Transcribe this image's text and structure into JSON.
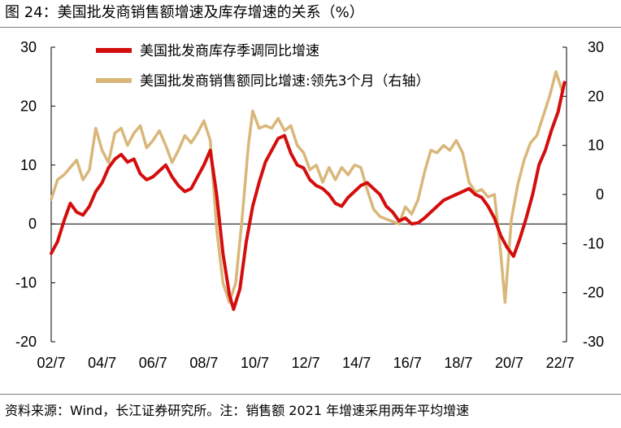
{
  "figure": {
    "title": "图 24：美国批发商销售额增速及库存增速的关系（%）",
    "source": "资料来源：Wind，长江证券研究所。注：销售额 2021 年增速采用两年平均增速"
  },
  "colors": {
    "inventory": "#d40d0d",
    "sales": "#d9b77a",
    "axis": "#000000"
  },
  "chart_data": {
    "type": "line",
    "title": "美国批发商销售额增速及库存增速的关系（%）",
    "x_ticks": [
      "02/7",
      "04/7",
      "06/7",
      "08/7",
      "10/7",
      "12/7",
      "14/7",
      "16/7",
      "18/7",
      "20/7",
      "22/7"
    ],
    "xlim": [
      "2002-07",
      "2022-10"
    ],
    "y_left": {
      "ticks": [
        30,
        20,
        10,
        0,
        -10,
        -20
      ],
      "ylim": [
        -20,
        30
      ]
    },
    "y_right": {
      "ticks": [
        30,
        20,
        10,
        0,
        -10,
        -20,
        -30
      ],
      "ylim": [
        -30,
        30
      ]
    },
    "grid": false,
    "legend_position": "top-center",
    "series": [
      {
        "name": "美国批发商库存季调同比增速",
        "axis": "left",
        "color": "#d40d0d",
        "points": [
          [
            "2002-07",
            -5.0
          ],
          [
            "2002-10",
            -3.0
          ],
          [
            "2003-01",
            0.5
          ],
          [
            "2003-04",
            3.5
          ],
          [
            "2003-07",
            2.0
          ],
          [
            "2003-10",
            1.5
          ],
          [
            "2004-01",
            3.0
          ],
          [
            "2004-04",
            5.5
          ],
          [
            "2004-07",
            7.0
          ],
          [
            "2004-10",
            9.5
          ],
          [
            "2005-01",
            11.0
          ],
          [
            "2005-04",
            11.8
          ],
          [
            "2005-07",
            10.5
          ],
          [
            "2005-10",
            11.0
          ],
          [
            "2006-01",
            8.5
          ],
          [
            "2006-04",
            7.5
          ],
          [
            "2006-07",
            8.0
          ],
          [
            "2006-10",
            9.0
          ],
          [
            "2007-01",
            10.0
          ],
          [
            "2007-04",
            8.0
          ],
          [
            "2007-07",
            6.5
          ],
          [
            "2007-10",
            5.5
          ],
          [
            "2008-01",
            6.0
          ],
          [
            "2008-04",
            8.0
          ],
          [
            "2008-07",
            10.0
          ],
          [
            "2008-10",
            12.5
          ],
          [
            "2009-01",
            5.0
          ],
          [
            "2009-04",
            -5.0
          ],
          [
            "2009-07",
            -12.0
          ],
          [
            "2009-09",
            -14.5
          ],
          [
            "2009-12",
            -11.0
          ],
          [
            "2010-03",
            -3.0
          ],
          [
            "2010-06",
            3.0
          ],
          [
            "2010-09",
            7.0
          ],
          [
            "2010-12",
            10.5
          ],
          [
            "2011-03",
            12.5
          ],
          [
            "2011-06",
            14.5
          ],
          [
            "2011-09",
            15.0
          ],
          [
            "2011-12",
            12.0
          ],
          [
            "2012-03",
            10.0
          ],
          [
            "2012-06",
            9.5
          ],
          [
            "2012-09",
            7.5
          ],
          [
            "2012-12",
            6.5
          ],
          [
            "2013-03",
            6.0
          ],
          [
            "2013-06",
            5.0
          ],
          [
            "2013-09",
            3.5
          ],
          [
            "2013-12",
            3.0
          ],
          [
            "2014-03",
            4.5
          ],
          [
            "2014-06",
            5.5
          ],
          [
            "2014-09",
            6.5
          ],
          [
            "2014-12",
            7.0
          ],
          [
            "2015-03",
            6.0
          ],
          [
            "2015-06",
            5.0
          ],
          [
            "2015-09",
            3.0
          ],
          [
            "2015-12",
            2.0
          ],
          [
            "2016-03",
            0.5
          ],
          [
            "2016-06",
            1.0
          ],
          [
            "2016-09",
            0.0
          ],
          [
            "2016-12",
            0.2
          ],
          [
            "2017-03",
            1.0
          ],
          [
            "2017-06",
            2.0
          ],
          [
            "2017-09",
            3.0
          ],
          [
            "2017-12",
            4.0
          ],
          [
            "2018-03",
            4.5
          ],
          [
            "2018-06",
            5.0
          ],
          [
            "2018-09",
            5.5
          ],
          [
            "2018-12",
            6.0
          ],
          [
            "2019-03",
            5.0
          ],
          [
            "2019-06",
            4.5
          ],
          [
            "2019-09",
            3.0
          ],
          [
            "2019-12",
            1.0
          ],
          [
            "2020-03",
            -2.0
          ],
          [
            "2020-06",
            -4.0
          ],
          [
            "2020-09",
            -5.5
          ],
          [
            "2020-12",
            -2.5
          ],
          [
            "2021-03",
            1.0
          ],
          [
            "2021-06",
            5.0
          ],
          [
            "2021-09",
            10.0
          ],
          [
            "2021-12",
            12.5
          ],
          [
            "2022-03",
            16.0
          ],
          [
            "2022-06",
            19.0
          ],
          [
            "2022-09",
            24.0
          ]
        ]
      },
      {
        "name": "美国批发商销售额同比增速:领先3个月（右轴）",
        "axis": "right",
        "color": "#d9b77a",
        "points": [
          [
            "2002-07",
            -1.0
          ],
          [
            "2002-10",
            3.0
          ],
          [
            "2003-01",
            4.0
          ],
          [
            "2003-04",
            5.5
          ],
          [
            "2003-07",
            7.0
          ],
          [
            "2003-10",
            3.0
          ],
          [
            "2004-01",
            5.0
          ],
          [
            "2004-04",
            13.5
          ],
          [
            "2004-07",
            9.0
          ],
          [
            "2004-10",
            6.5
          ],
          [
            "2005-01",
            12.5
          ],
          [
            "2005-04",
            13.5
          ],
          [
            "2005-07",
            10.0
          ],
          [
            "2005-10",
            12.5
          ],
          [
            "2006-01",
            14.0
          ],
          [
            "2006-04",
            9.5
          ],
          [
            "2006-07",
            11.0
          ],
          [
            "2006-10",
            13.0
          ],
          [
            "2007-01",
            10.0
          ],
          [
            "2007-04",
            6.5
          ],
          [
            "2007-07",
            9.0
          ],
          [
            "2007-10",
            12.0
          ],
          [
            "2008-01",
            10.5
          ],
          [
            "2008-04",
            12.5
          ],
          [
            "2008-07",
            15.0
          ],
          [
            "2008-10",
            11.0
          ],
          [
            "2009-01",
            -7.0
          ],
          [
            "2009-04",
            -18.0
          ],
          [
            "2009-07",
            -22.0
          ],
          [
            "2009-10",
            -18.0
          ],
          [
            "2010-01",
            -5.0
          ],
          [
            "2010-04",
            10.0
          ],
          [
            "2010-06",
            17.0
          ],
          [
            "2010-09",
            13.5
          ],
          [
            "2010-12",
            14.0
          ],
          [
            "2011-03",
            13.5
          ],
          [
            "2011-06",
            15.5
          ],
          [
            "2011-09",
            13.0
          ],
          [
            "2011-12",
            14.0
          ],
          [
            "2012-03",
            10.0
          ],
          [
            "2012-06",
            8.5
          ],
          [
            "2012-09",
            5.0
          ],
          [
            "2012-12",
            6.0
          ],
          [
            "2013-03",
            2.5
          ],
          [
            "2013-06",
            5.5
          ],
          [
            "2013-09",
            3.0
          ],
          [
            "2013-12",
            5.5
          ],
          [
            "2014-03",
            4.0
          ],
          [
            "2014-06",
            6.0
          ],
          [
            "2014-09",
            5.5
          ],
          [
            "2014-12",
            1.0
          ],
          [
            "2015-03",
            -3.0
          ],
          [
            "2015-06",
            -4.5
          ],
          [
            "2015-09",
            -5.0
          ],
          [
            "2015-12",
            -5.5
          ],
          [
            "2016-03",
            -6.0
          ],
          [
            "2016-06",
            -2.5
          ],
          [
            "2016-09",
            -4.0
          ],
          [
            "2016-12",
            -1.0
          ],
          [
            "2017-03",
            4.5
          ],
          [
            "2017-06",
            9.0
          ],
          [
            "2017-09",
            8.5
          ],
          [
            "2017-12",
            10.0
          ],
          [
            "2018-03",
            9.0
          ],
          [
            "2018-06",
            11.0
          ],
          [
            "2018-09",
            8.5
          ],
          [
            "2018-12",
            2.5
          ],
          [
            "2019-03",
            0.5
          ],
          [
            "2019-06",
            1.0
          ],
          [
            "2019-09",
            -0.5
          ],
          [
            "2019-12",
            0.0
          ],
          [
            "2020-03",
            -12.0
          ],
          [
            "2020-05",
            -22.0
          ],
          [
            "2020-08",
            -5.0
          ],
          [
            "2020-11",
            2.0
          ],
          [
            "2021-02",
            7.0
          ],
          [
            "2021-05",
            10.5
          ],
          [
            "2021-08",
            12.0
          ],
          [
            "2021-11",
            16.0
          ],
          [
            "2022-02",
            20.0
          ],
          [
            "2022-05",
            25.0
          ],
          [
            "2022-08",
            21.0
          ]
        ]
      }
    ]
  }
}
